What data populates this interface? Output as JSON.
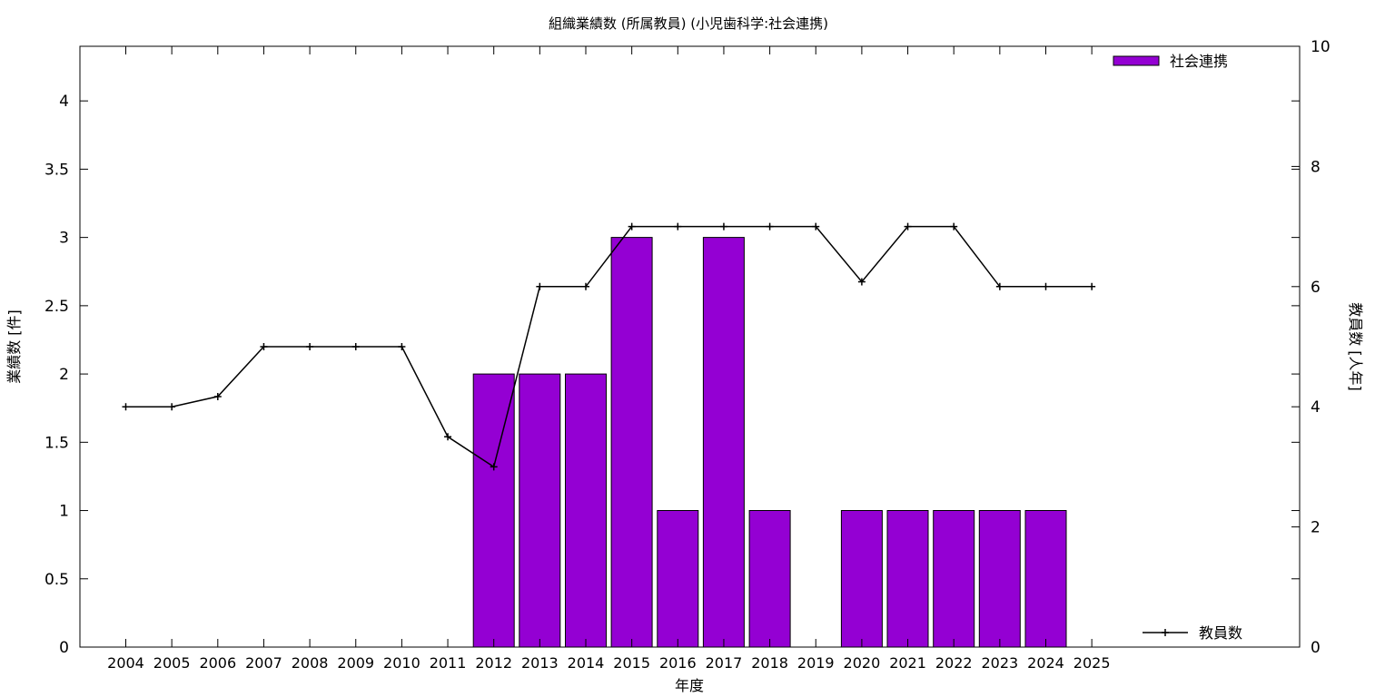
{
  "chart_data": {
    "type": "bar",
    "title": "組織業績数 (所属教員) (小児歯科学:社会連携)",
    "xlabel": "年度",
    "ylabel": "業績数 [件]",
    "y2label": "教員数 [人年]",
    "categories": [
      "2004",
      "2005",
      "2006",
      "2007",
      "2008",
      "2009",
      "2010",
      "2011",
      "2012",
      "2013",
      "2014",
      "2015",
      "2016",
      "2017",
      "2018",
      "2019",
      "2020",
      "2021",
      "2022",
      "2023",
      "2024",
      "2025"
    ],
    "ylim": [
      0,
      4.4
    ],
    "yticks": [
      0,
      0.5,
      1,
      1.5,
      2,
      2.5,
      3,
      3.5,
      4
    ],
    "ytick_labels": [
      "0",
      "0.5",
      "1",
      "1.5",
      "2",
      "2.5",
      "3",
      "3.5",
      "4"
    ],
    "y2lim": [
      0,
      10
    ],
    "y2ticks": [
      0,
      2,
      4,
      6,
      8,
      10
    ],
    "y2tick_labels": [
      "0",
      "2",
      "4",
      "6",
      "8",
      "10"
    ],
    "grid": false,
    "legend_placement": "top-right (bars), bottom-right (line)",
    "series": [
      {
        "name": "社会連携",
        "kind": "bar",
        "axis": "left",
        "color": "#9400d3",
        "values": [
          0,
          0,
          0,
          0,
          0,
          0,
          0,
          0,
          2,
          2,
          2,
          3,
          1,
          3,
          1,
          0,
          1,
          1,
          1,
          1,
          1,
          0
        ]
      },
      {
        "name": "教員数",
        "kind": "line",
        "axis": "right",
        "color": "#000000",
        "values": [
          4,
          4,
          4.17,
          5,
          5,
          5,
          5,
          3.5,
          3,
          6,
          6,
          7,
          7,
          7,
          7,
          7,
          6.08,
          7,
          7,
          6,
          6,
          6
        ]
      }
    ]
  }
}
